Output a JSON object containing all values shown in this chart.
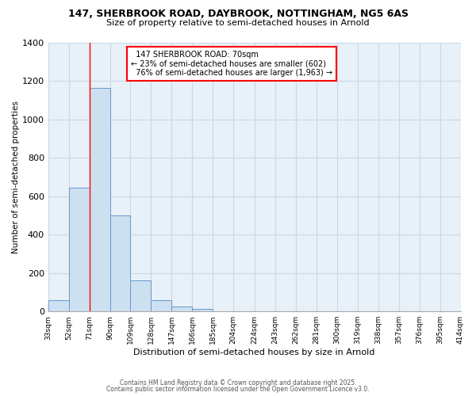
{
  "title_line1": "147, SHERBROOK ROAD, DAYBROOK, NOTTINGHAM, NG5 6AS",
  "title_line2": "Size of property relative to semi-detached houses in Arnold",
  "xlabel": "Distribution of semi-detached houses by size in Arnold",
  "ylabel": "Number of semi-detached properties",
  "bar_left_edges": [
    33,
    52,
    71,
    90,
    109,
    128,
    147,
    166,
    185,
    204,
    224,
    243,
    262,
    281,
    300,
    319,
    338,
    357,
    376,
    395
  ],
  "bar_heights": [
    60,
    645,
    1165,
    500,
    160,
    60,
    25,
    15,
    0,
    0,
    0,
    0,
    0,
    0,
    0,
    0,
    0,
    0,
    0,
    0
  ],
  "bin_width": 19,
  "bar_color": "#cce0f0",
  "bar_edge_color": "#6699cc",
  "x_tick_labels": [
    "33sqm",
    "52sqm",
    "71sqm",
    "90sqm",
    "109sqm",
    "128sqm",
    "147sqm",
    "166sqm",
    "185sqm",
    "204sqm",
    "224sqm",
    "243sqm",
    "262sqm",
    "281sqm",
    "300sqm",
    "319sqm",
    "338sqm",
    "357sqm",
    "376sqm",
    "395sqm",
    "414sqm"
  ],
  "x_tick_positions": [
    33,
    52,
    71,
    90,
    109,
    128,
    147,
    166,
    185,
    204,
    224,
    243,
    262,
    281,
    300,
    319,
    338,
    357,
    376,
    395,
    414
  ],
  "ylim": [
    0,
    1400
  ],
  "yticks": [
    0,
    200,
    400,
    600,
    800,
    1000,
    1200,
    1400
  ],
  "property_label": "147 SHERBROOK ROAD: 70sqm",
  "pct_smaller": 23,
  "count_smaller": 602,
  "pct_larger": 76,
  "count_larger": 1963,
  "vline_x": 71,
  "grid_color": "#c8d8e8",
  "background_color": "#e8f0f8",
  "footer1": "Contains HM Land Registry data © Crown copyright and database right 2025.",
  "footer2": "Contains public sector information licensed under the Open Government Licence v3.0."
}
